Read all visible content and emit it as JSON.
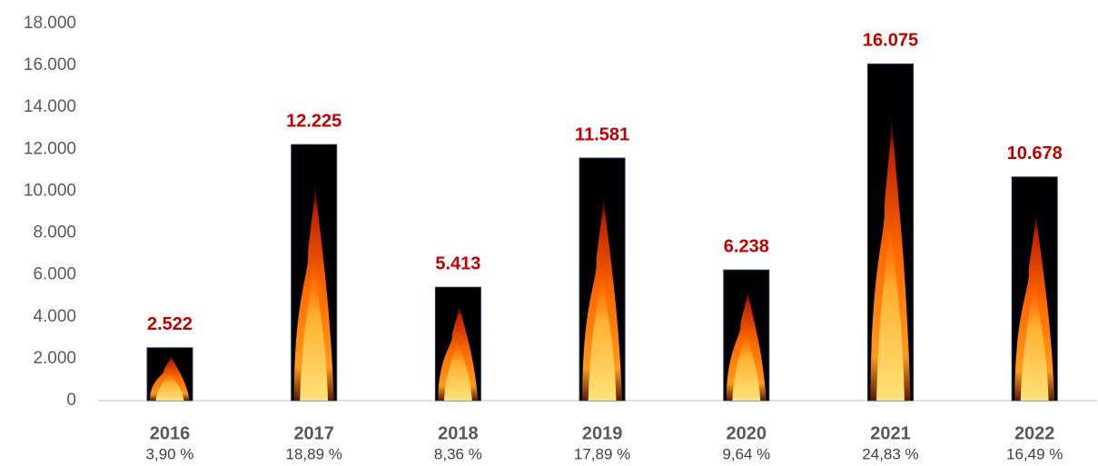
{
  "chart_data": {
    "type": "bar",
    "categories": [
      "2016",
      "2017",
      "2018",
      "2019",
      "2020",
      "2021",
      "2022"
    ],
    "share_labels": [
      "3,90 %",
      "18,89 %",
      "8,36 %",
      "17,89 %",
      "9,64 %",
      "24,83 %",
      "16,49 %"
    ],
    "values": [
      2522,
      12225,
      5413,
      11581,
      6238,
      16075,
      10678
    ],
    "value_labels": [
      "2.522",
      "12.225",
      "5.413",
      "11.581",
      "6.238",
      "16.075",
      "10.678"
    ],
    "color": "#000000",
    "ylim": [
      0,
      18000
    ],
    "yticks": [
      0,
      {
        "value": 2000,
        "label": "2.000"
      },
      {
        "value": 4000,
        "label": "4.000"
      },
      {
        "value": 6000,
        "label": "6.000"
      },
      {
        "value": 8000,
        "label": "8.000"
      },
      {
        "value": 10000,
        "label": "10.000"
      },
      {
        "value": 12000,
        "label": "12.000"
      },
      {
        "value": 14000,
        "label": "14.000"
      },
      {
        "value": 16000,
        "label": "16.000"
      },
      {
        "value": 18000,
        "label": "18.000"
      }
    ],
    "grid": false
  }
}
